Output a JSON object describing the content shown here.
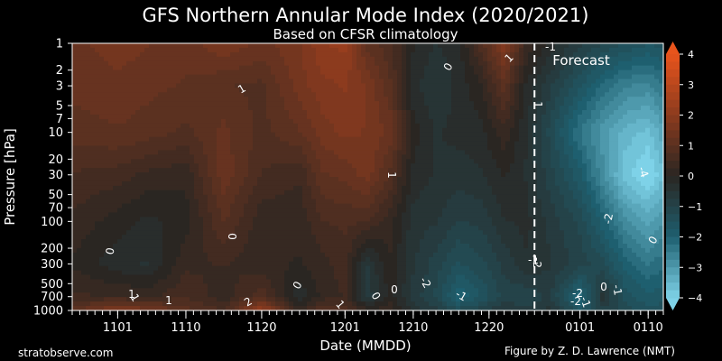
{
  "chart_data": {
    "type": "heatmap",
    "title": "GFS Northern Annular Mode Index (2020/2021)",
    "subtitle": "Based on CFSR climatology",
    "xlabel": "Date (MMDD)",
    "ylabel": "Pressure [hPa]",
    "y_scale": "log",
    "ylim": [
      1000,
      1
    ],
    "x_ticks": [
      "1101",
      "1110",
      "1120",
      "1201",
      "1210",
      "1220",
      "0101",
      "0110"
    ],
    "y_ticks": [
      "1",
      "2",
      "3",
      "5",
      "7",
      "10",
      "20",
      "30",
      "50",
      "70",
      "100",
      "200",
      "300",
      "500",
      "700",
      "1000"
    ],
    "colorbar_ticks": [
      "4",
      "3",
      "2",
      "1",
      "0",
      "−1",
      "−2",
      "−3",
      "−4"
    ],
    "colorbar_range": [
      -4,
      4
    ],
    "forecast_label": "Forecast",
    "date_range": [
      "2020-10-26",
      "2021-01-12"
    ],
    "forecast_start": "2020-12-26",
    "contour_labels": [
      "1",
      "1",
      "1",
      "0",
      "0",
      "0",
      "0",
      "0",
      "1",
      "1",
      "1",
      "2",
      "0",
      "1",
      "1",
      "-1",
      "-2",
      "-1",
      "-2",
      "-1",
      "-2",
      "-2",
      "-1",
      "0",
      "0",
      "-4",
      "-2",
      "-1"
    ],
    "columns": [
      {
        "date": "2020-10-26",
        "nam": [
          1.3,
          1.2,
          1.0,
          0.6,
          0.3,
          0.1,
          0.4,
          1.0
        ]
      },
      {
        "date": "2020-11-01",
        "nam": [
          1.5,
          1.3,
          1.1,
          0.5,
          0.0,
          -0.3,
          0.4,
          1.8
        ]
      },
      {
        "date": "2020-11-05",
        "nam": [
          1.4,
          1.2,
          1.0,
          0.3,
          -0.2,
          -0.4,
          0.3,
          1.5
        ]
      },
      {
        "date": "2020-11-10",
        "nam": [
          1.2,
          1.1,
          0.8,
          0.2,
          0.0,
          0.3,
          0.6,
          1.0
        ]
      },
      {
        "date": "2020-11-15",
        "nam": [
          1.6,
          0.9,
          1.2,
          1.3,
          0.9,
          0.4,
          0.2,
          0.6
        ]
      },
      {
        "date": "2020-11-20",
        "nam": [
          1.3,
          0.8,
          0.8,
          0.6,
          0.2,
          0.2,
          0.8,
          2.2
        ]
      },
      {
        "date": "2020-11-25",
        "nam": [
          1.6,
          1.5,
          1.1,
          0.4,
          0.2,
          0.1,
          -0.3,
          0.2
        ]
      },
      {
        "date": "2020-11-28",
        "nam": [
          2.1,
          1.8,
          1.5,
          1.1,
          0.6,
          0.3,
          0.2,
          1.0
        ]
      },
      {
        "date": "2020-12-01",
        "nam": [
          2.2,
          1.9,
          1.7,
          1.2,
          0.7,
          0.5,
          0.4,
          0.8
        ]
      },
      {
        "date": "2020-12-04",
        "nam": [
          1.0,
          1.6,
          1.6,
          1.5,
          0.6,
          -0.6,
          -0.8,
          0.2
        ]
      },
      {
        "date": "2020-12-07",
        "nam": [
          0.7,
          0.9,
          1.3,
          0.8,
          0.2,
          0.1,
          0.0,
          0.3
        ]
      },
      {
        "date": "2020-12-10",
        "nam": [
          -0.1,
          -0.3,
          0.0,
          -0.2,
          -0.5,
          -0.6,
          -0.7,
          -0.5
        ]
      },
      {
        "date": "2020-12-13",
        "nam": [
          -0.4,
          -0.6,
          -0.4,
          -0.4,
          -0.6,
          -1.0,
          -1.2,
          -0.8
        ]
      },
      {
        "date": "2020-12-16",
        "nam": [
          -0.2,
          -0.3,
          -0.3,
          -0.5,
          -0.9,
          -1.4,
          -2.1,
          -1.3
        ]
      },
      {
        "date": "2020-12-19",
        "nam": [
          0.8,
          0.1,
          -0.2,
          -0.4,
          -0.8,
          -1.2,
          -1.6,
          -1.0
        ]
      },
      {
        "date": "2020-12-22",
        "nam": [
          1.8,
          1.0,
          0.3,
          -0.1,
          -0.4,
          -0.8,
          -1.0,
          -0.6
        ]
      },
      {
        "date": "2020-12-25",
        "nam": [
          0.3,
          -0.2,
          -0.4,
          -0.4,
          -0.3,
          -0.4,
          -1.1,
          -0.8
        ]
      },
      {
        "date": "2020-12-28",
        "nam": [
          -0.2,
          -0.8,
          -1.2,
          -1.0,
          -0.7,
          -0.6,
          -0.8,
          -0.5
        ]
      },
      {
        "date": "2021-01-01",
        "nam": [
          -0.8,
          -1.6,
          -2.4,
          -1.8,
          -1.2,
          -1.0,
          -2.2,
          -1.6
        ]
      },
      {
        "date": "2021-01-04",
        "nam": [
          -1.1,
          -2.2,
          -3.0,
          -2.8,
          -2.0,
          -1.3,
          -0.5,
          -1.0
        ]
      },
      {
        "date": "2021-01-07",
        "nam": [
          -1.4,
          -2.6,
          -3.5,
          -3.8,
          -2.8,
          -2.0,
          -1.5,
          -1.2
        ]
      },
      {
        "date": "2021-01-10",
        "nam": [
          -1.6,
          -2.7,
          -3.7,
          -4.2,
          -3.2,
          -2.4,
          -1.8,
          -1.6
        ]
      },
      {
        "date": "2021-01-12",
        "nam": [
          -1.5,
          -2.4,
          -3.2,
          -3.7,
          -2.9,
          -2.2,
          -1.7,
          -1.5
        ]
      }
    ],
    "levels_hpa": [
      1,
      3,
      10,
      30,
      100,
      300,
      700,
      1000
    ]
  },
  "credits": {
    "left": "stratobserve.com",
    "right": "Figure by Z. D. Lawrence (NMT)"
  },
  "colors": {
    "positive_max": "#e8541c",
    "positive_mid": "#8c3b1e",
    "neutral": "#2a2622",
    "negative_mid": "#1e5f6f",
    "negative_max": "#7ed2e8",
    "forecast_line": "#ffffff"
  }
}
